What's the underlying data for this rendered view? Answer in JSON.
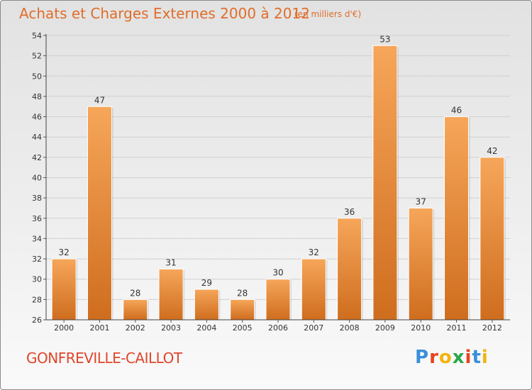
{
  "header": {
    "title": "Achats et Charges Externes 2000 à 2012",
    "subtitle": "(en milliers d'€)"
  },
  "footer": {
    "commune": "GONFREVILLE-CAILLOT",
    "logo_text": "Proxiti",
    "logo_colors": [
      "#3b8fd9",
      "#e8431f",
      "#f2b40c",
      "#2aa74a",
      "#e8431f",
      "#3b8fd9",
      "#f2b40c"
    ]
  },
  "colors": {
    "bar_light": "#f6a65a",
    "bar_dark": "#cf6d1e",
    "title": "#e06d2a",
    "commune": "#e0462a"
  },
  "chart_data": {
    "type": "bar",
    "title": "Achats et Charges Externes 2000 à 2012",
    "subtitle": "(en milliers d'€)",
    "xlabel": "",
    "ylabel": "",
    "categories": [
      "2000",
      "2001",
      "2002",
      "2003",
      "2004",
      "2005",
      "2006",
      "2007",
      "2008",
      "2009",
      "2010",
      "2011",
      "2012"
    ],
    "values": [
      32,
      47,
      28,
      31,
      29,
      28,
      30,
      32,
      36,
      53,
      37,
      46,
      42
    ],
    "ylim": [
      26,
      54
    ],
    "yticks": [
      26,
      28,
      30,
      32,
      34,
      36,
      38,
      40,
      42,
      44,
      46,
      48,
      50,
      52,
      54
    ],
    "grid": true
  }
}
